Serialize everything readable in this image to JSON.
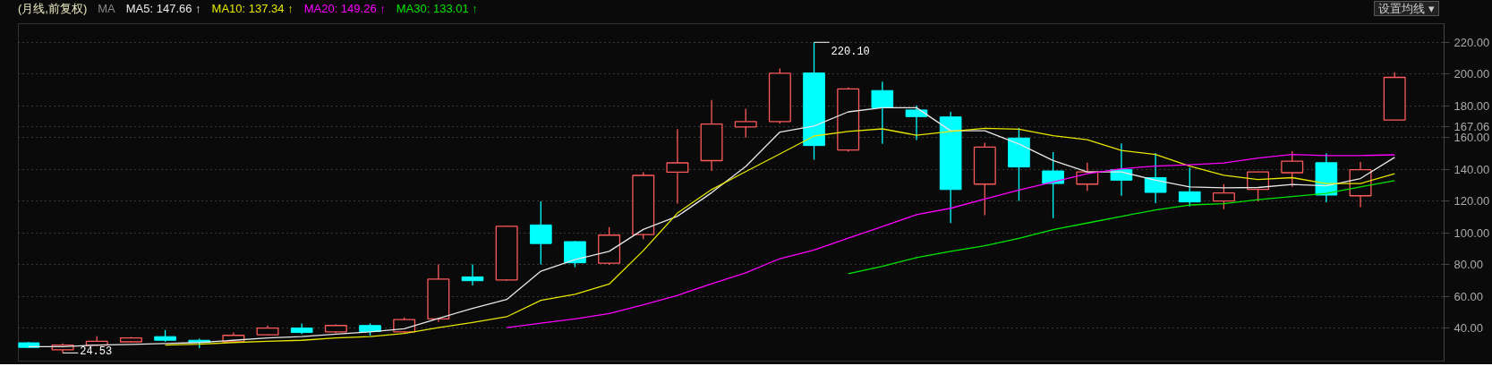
{
  "chart_data": {
    "type": "candlestick",
    "title": "(月线,前复权)",
    "categories": [
      null,
      null,
      null,
      null,
      null,
      null,
      null,
      null,
      null,
      null,
      null,
      null,
      null,
      null,
      null,
      null,
      null,
      null,
      null,
      null,
      null,
      null,
      null,
      null,
      null,
      null,
      null,
      null,
      null,
      null,
      null,
      null,
      null,
      null,
      null,
      null,
      null,
      null,
      null,
      null,
      null
    ],
    "ohlc": [
      [
        30.9,
        31.5,
        27.5,
        28.0
      ],
      [
        26.5,
        30.5,
        24.53,
        29.5
      ],
      [
        29.5,
        35.0,
        29.0,
        31.9
      ],
      [
        31.5,
        34.6,
        31.0,
        34.0
      ],
      [
        34.8,
        39.0,
        31.5,
        32.5
      ],
      [
        32.5,
        33.5,
        27.5,
        31.1
      ],
      [
        31.5,
        37.4,
        31.0,
        35.6
      ],
      [
        36.0,
        41.8,
        35.5,
        40.2
      ],
      [
        40.2,
        43.0,
        36.5,
        37.4
      ],
      [
        37.8,
        42.5,
        37.0,
        41.8
      ],
      [
        41.8,
        43.0,
        35.4,
        38.0
      ],
      [
        37.8,
        46.9,
        37.0,
        45.5
      ],
      [
        45.9,
        80.3,
        44.0,
        71.0
      ],
      [
        72.4,
        80.3,
        67.0,
        70.0
      ],
      [
        70.5,
        104.7,
        70.0,
        104.3
      ],
      [
        105.1,
        120.0,
        80.3,
        93.4
      ],
      [
        94.6,
        95.0,
        78.6,
        81.3
      ],
      [
        81.0,
        103.7,
        80.0,
        98.7
      ],
      [
        99.1,
        138.3,
        96.2,
        136.3
      ],
      [
        138.3,
        165.4,
        118.5,
        144.2
      ],
      [
        145.6,
        183.8,
        139.1,
        168.6
      ],
      [
        166.8,
        178.3,
        160.1,
        170.2
      ],
      [
        170.2,
        203.6,
        169.0,
        200.6
      ],
      [
        200.8,
        220.1,
        146.2,
        155.1
      ],
      [
        152.3,
        191.7,
        151.2,
        190.7
      ],
      [
        189.7,
        195.3,
        156.1,
        178.9
      ],
      [
        177.5,
        180.2,
        158.5,
        173.3
      ],
      [
        173.1,
        176.3,
        106.3,
        127.4
      ],
      [
        130.8,
        156.9,
        111.2,
        154.1
      ],
      [
        159.8,
        166.1,
        120.2,
        141.6
      ],
      [
        139.1,
        150.9,
        109.4,
        131.2
      ],
      [
        130.8,
        144.3,
        126.6,
        138.5
      ],
      [
        139.9,
        156.5,
        123.5,
        133.3
      ],
      [
        134.9,
        150.3,
        118.8,
        125.6
      ],
      [
        126.0,
        141.2,
        116.7,
        119.6
      ],
      [
        120.2,
        130.8,
        115.0,
        125.2
      ],
      [
        127.5,
        138.5,
        119.8,
        138.5
      ],
      [
        138.0,
        151.5,
        129.1,
        145.3
      ],
      [
        144.3,
        150.3,
        119.4,
        123.9
      ],
      [
        123.5,
        144.7,
        116.3,
        139.9
      ],
      [
        171.2,
        201.3,
        171.2,
        198.0
      ]
    ],
    "colors": [
      "#00ffff",
      "#ff5a5a",
      "#ff5a5a",
      "#ff5a5a",
      "#00ffff",
      "#00ffff",
      "#ff5a5a",
      "#ff5a5a",
      "#00ffff",
      "#ff5a5a",
      "#00ffff",
      "#ff5a5a",
      "#ff5a5a",
      "#00ffff",
      "#ff5a5a",
      "#00ffff",
      "#00ffff",
      "#ff5a5a",
      "#ff5a5a",
      "#ff5a5a",
      "#ff5a5a",
      "#ff5a5a",
      "#ff5a5a",
      "#00ffff",
      "#ff5a5a",
      "#00ffff",
      "#00ffff",
      "#00ffff",
      "#ff5a5a",
      "#00ffff",
      "#00ffff",
      "#ff5a5a",
      "#00ffff",
      "#00ffff",
      "#00ffff",
      "#ff5a5a",
      "#ff5a5a",
      "#ff5a5a",
      "#00ffff",
      "#ff5a5a",
      "#ff5a5a"
    ],
    "series": [
      {
        "type": "line",
        "name": "MA5: 147.66 ↑",
        "color": "#e8e8e8",
        "values": [
          28.5,
          28.5,
          29.5,
          29.9,
          30.5,
          31.1,
          32.5,
          34.0,
          34.8,
          36.4,
          37.8,
          39.8,
          46.3,
          52.6,
          58.2,
          76.0,
          83.3,
          88.5,
          102.3,
          110.6,
          125.4,
          141.9,
          163.6,
          167.4,
          176.3,
          178.9,
          178.9,
          164.4,
          164.4,
          156.1,
          145.7,
          138.5,
          138.5,
          133.3,
          129.1,
          128.5,
          128.7,
          130.6,
          129.8,
          134.3,
          147.66
        ]
      },
      {
        "type": "line",
        "name": "MA10: 137.34 ↑",
        "color": "#e6e600",
        "values": [
          null,
          null,
          null,
          null,
          29.5,
          30.0,
          31.1,
          31.9,
          32.5,
          34.0,
          34.8,
          36.8,
          40.4,
          43.7,
          47.3,
          57.6,
          61.5,
          67.9,
          88.9,
          112.6,
          127.4,
          138.7,
          149.8,
          161.1,
          164.0,
          165.6,
          161.6,
          164.0,
          166.0,
          165.4,
          161.3,
          158.8,
          152.0,
          149.5,
          142.2,
          136.4,
          133.7,
          134.9,
          131.2,
          131.2,
          137.34
        ]
      },
      {
        "type": "line",
        "name": "MA20: 149.26 ↑",
        "color": "#ff00ff",
        "values": [
          null,
          null,
          null,
          null,
          null,
          null,
          null,
          null,
          null,
          null,
          null,
          null,
          null,
          null,
          40.4,
          43.3,
          45.9,
          49.3,
          54.8,
          60.8,
          68.1,
          75.0,
          83.9,
          89.3,
          96.8,
          104.1,
          111.6,
          115.6,
          121.5,
          127.1,
          132.2,
          137.4,
          140.5,
          142.2,
          143.0,
          144.1,
          147.2,
          149.5,
          148.8,
          148.8,
          149.26
        ]
      },
      {
        "type": "line",
        "name": "MA30: 133.01 ↑",
        "color": "#00e600",
        "values": [
          null,
          null,
          null,
          null,
          null,
          null,
          null,
          null,
          null,
          null,
          null,
          null,
          null,
          null,
          null,
          null,
          null,
          null,
          null,
          null,
          null,
          null,
          null,
          null,
          74.4,
          79.0,
          84.6,
          88.5,
          92.0,
          96.6,
          102.2,
          106.3,
          110.5,
          114.6,
          117.7,
          118.5,
          121.0,
          123.0,
          125.0,
          129.1,
          133.01
        ]
      }
    ],
    "ylim": [
      19.4,
      231.8
    ],
    "yticks": [
      {
        "value": 40,
        "label": "40.00"
      },
      {
        "value": 60,
        "label": "60.00"
      },
      {
        "value": 80,
        "label": "80.00"
      },
      {
        "value": 100,
        "label": "100.00"
      },
      {
        "value": 120,
        "label": "120.00"
      },
      {
        "value": 140,
        "label": "140.00"
      },
      {
        "value": 160,
        "label": "160.00"
      },
      {
        "value": 180,
        "label": "180.00"
      },
      {
        "value": 200,
        "label": "200.00"
      },
      {
        "value": 220,
        "label": "220.00"
      },
      {
        "value": 167.06,
        "label": "167.06"
      }
    ],
    "annotations": [
      "220.10",
      "24.53",
      "MA",
      "设置均线 ▾"
    ],
    "grid": "y",
    "line_style": "solid"
  }
}
